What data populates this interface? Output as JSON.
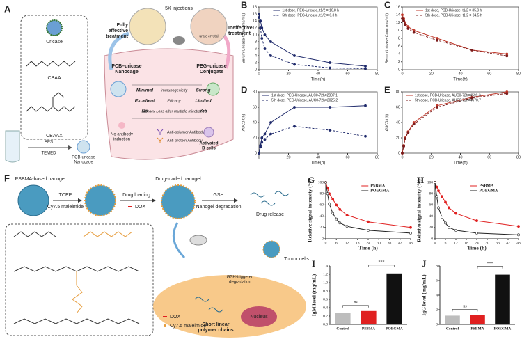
{
  "diagram_a": {
    "label": "A",
    "injections": "5X injections",
    "fully_effective": [
      "Fully",
      "effective",
      "treatment"
    ],
    "ineffective": [
      "Ineffective",
      "treatment"
    ],
    "urate_crystal": "urate crystal",
    "uricase": "Uricase",
    "cbaa": "CBAA",
    "cbaax": "CBAAX",
    "aps": "APS",
    "temed": "TEMED",
    "nanocage_product": [
      "PCB-uricase",
      "Nanocage"
    ],
    "pcb_title": [
      "PCB–uricase",
      "Nanocage"
    ],
    "peg_title": [
      "PEG–uricase",
      "Conjugate"
    ],
    "comparison": [
      [
        "Minimal",
        "Immunogenicity",
        "Strong"
      ],
      [
        "Excellent",
        "Efficacy",
        "Limited"
      ],
      [
        "No",
        "Efficacy Loss after multiple injections?",
        "Yes"
      ]
    ],
    "no_antibody": [
      "No antibody",
      "induction"
    ],
    "anti_polymer": "Anti-polymer Antibody",
    "anti_protein": "Anti-protein Antibody",
    "b_cells": [
      "Activated",
      "B-cells"
    ]
  },
  "diagram_f": {
    "label": "F",
    "nanogel": "PSBMA-based nanogel",
    "tcep": "TCEP",
    "cy_step": "Cy7.5 maleimide",
    "drug_loading": "Drug loading",
    "dox_step": "DOX",
    "loaded": "Drug-loaded nanogel",
    "gsh": "GSH",
    "degradation": "Nanogel degradation",
    "release": "Drug release",
    "tumor": "Tumor cells",
    "gsh_triggered": [
      "GSH-triggered",
      "degradation"
    ],
    "nucleus": "Nucleus",
    "chains": [
      "Short linear",
      "polymer chains"
    ],
    "legend_dox": "DOX",
    "legend_cy": "Cy7.5 maleimide"
  },
  "chart_data": [
    {
      "type": "line",
      "label": "B",
      "ylabel": "Serum Uricase Conc.(ms/mL)",
      "xlabel": "Time(h)",
      "x": [
        0,
        1,
        2,
        4,
        8,
        24,
        48,
        72
      ],
      "xlim": [
        0,
        80
      ],
      "xticks": [
        0,
        20,
        40,
        60,
        80
      ],
      "ylim": [
        0,
        18
      ],
      "yticks": [
        0,
        2,
        4,
        6,
        8,
        10,
        12,
        14,
        16,
        18
      ],
      "legend": "upper right",
      "series": [
        {
          "name": "1st dose, PEG-Uricase, t1/2 = 16.8 h",
          "color": "#1f2a6b",
          "style": "solid",
          "values": [
            16,
            14,
            12,
            10,
            8,
            4,
            2,
            1
          ]
        },
        {
          "name": "5th dose, PEG-Uricase, t1/2 = 6.3 h",
          "color": "#1f2a6b",
          "style": "dashed",
          "values": [
            15,
            12,
            9,
            6,
            4,
            1.5,
            0.5,
            0.3
          ]
        }
      ]
    },
    {
      "type": "line",
      "label": "C",
      "ylabel": "Serum Uricase Conc.(ms/mL)",
      "xlabel": "Time(h)",
      "x": [
        0,
        1,
        2,
        4,
        8,
        24,
        48,
        72
      ],
      "xlim": [
        0,
        80
      ],
      "xticks": [
        0,
        20,
        40,
        60,
        80
      ],
      "ylim": [
        0,
        16
      ],
      "yticks": [
        0,
        2,
        4,
        6,
        8,
        10,
        12,
        14,
        16
      ],
      "legend": "upper right",
      "series": [
        {
          "name": "1st dose, PCB-Uricase, t1/2 = 35.9 h",
          "color": "#c0392b",
          "style": "solid",
          "values": [
            14,
            13,
            12,
            11,
            10,
            8,
            5,
            4
          ]
        },
        {
          "name": "5th dose, PCB-Uricase, t1/2 = 34.5 h",
          "color": "#7b1c1c",
          "style": "dashed",
          "values": [
            13,
            12.5,
            11.5,
            10.5,
            9.5,
            7.5,
            5,
            3.5
          ]
        }
      ]
    },
    {
      "type": "line",
      "label": "D",
      "ylabel": "AUC0-t(h)",
      "xlabel": "Time(h)",
      "x": [
        0,
        1,
        2,
        4,
        8,
        24,
        48,
        72
      ],
      "xlim": [
        0,
        80
      ],
      "xticks": [
        0,
        20,
        40,
        60,
        80
      ],
      "ylim": [
        0,
        80
      ],
      "yticks": [
        0,
        20,
        40,
        60,
        80
      ],
      "legend": "upper left",
      "series": [
        {
          "name": "1st dose, PEG-Uricase, AUC0-72h=2807.1",
          "color": "#1f2a6b",
          "style": "solid",
          "values": [
            0,
            10,
            20,
            25,
            40,
            60,
            60,
            62
          ]
        },
        {
          "name": "5th dose, PEG-Uricase, AUC0-72h=2025.2",
          "color": "#1f2a6b",
          "style": "dashed",
          "values": [
            0,
            8,
            14,
            18,
            25,
            35,
            30,
            22
          ]
        }
      ]
    },
    {
      "type": "line",
      "label": "E",
      "ylabel": "AUC0-t(h)",
      "xlabel": "Time(h)",
      "x": [
        0,
        1,
        2,
        4,
        8,
        24,
        48,
        72
      ],
      "xlim": [
        0,
        80
      ],
      "xticks": [
        0,
        20,
        40,
        60,
        80
      ],
      "ylim": [
        0,
        80
      ],
      "yticks": [
        0,
        20,
        40,
        60,
        80
      ],
      "legend": "upper left",
      "series": [
        {
          "name": "1st dose, PCB-Uricase, AUC0-72h=4599.3",
          "color": "#c0392b",
          "style": "solid",
          "values": [
            0,
            10,
            20,
            28,
            40,
            62,
            73,
            80
          ]
        },
        {
          "name": "5th dose, PCB-Uricase, AUC0-72h=4670.7",
          "color": "#7b1c1c",
          "style": "dashed",
          "values": [
            0,
            9,
            19,
            27,
            38,
            60,
            72,
            78
          ]
        }
      ]
    },
    {
      "type": "line",
      "label": "G",
      "ylabel": "Relative signal intensity (%)",
      "xlabel": "Time (h)",
      "x": [
        0,
        1,
        2,
        4,
        6,
        8,
        12,
        24,
        48
      ],
      "xlim": [
        0,
        48
      ],
      "xticks": [
        0,
        6,
        12,
        18,
        24,
        30,
        36,
        42,
        48
      ],
      "ylim": [
        0,
        100
      ],
      "yticks": [
        0,
        20,
        40,
        60,
        80,
        100
      ],
      "legend": "upper right",
      "series": [
        {
          "name": "PSBMA",
          "color": "#e02020",
          "style": "solid",
          "values": [
            100,
            90,
            80,
            70,
            60,
            52,
            42,
            30,
            20
          ]
        },
        {
          "name": "POEGMA",
          "color": "#222222",
          "style": "solid",
          "values": [
            100,
            80,
            62,
            45,
            35,
            28,
            22,
            15,
            10
          ]
        }
      ]
    },
    {
      "type": "line",
      "label": "H",
      "ylabel": "Relative signal intensity (%)",
      "xlabel": "Time (h)",
      "x": [
        0,
        1,
        2,
        4,
        6,
        8,
        12,
        24,
        48
      ],
      "xlim": [
        0,
        48
      ],
      "xticks": [
        0,
        6,
        12,
        18,
        24,
        30,
        36,
        42,
        48
      ],
      "ylim": [
        0,
        100
      ],
      "yticks": [
        0,
        20,
        40,
        60,
        80,
        100
      ],
      "legend": "upper right",
      "series": [
        {
          "name": "PSBMA",
          "color": "#e02020",
          "style": "solid",
          "values": [
            100,
            92,
            85,
            75,
            65,
            55,
            45,
            32,
            22
          ]
        },
        {
          "name": "POEGMA",
          "color": "#222222",
          "style": "solid",
          "values": [
            100,
            75,
            55,
            38,
            28,
            20,
            15,
            10,
            7
          ]
        }
      ]
    },
    {
      "type": "bar",
      "label": "I",
      "ylabel": "IgM level (mg/mL)",
      "categories": [
        "Control",
        "PSBMA",
        "POEGMA"
      ],
      "values": [
        0.27,
        0.32,
        1.22
      ],
      "colors": [
        "#bdbdbd",
        "#e02020",
        "#111111"
      ],
      "ylim": [
        0,
        1.4
      ],
      "yticks": [
        {
          "value": 0,
          "label": "0.0"
        },
        0.2,
        0.4,
        0.6,
        0.8,
        {
          "value": 1,
          "label": "1.0"
        },
        1.2,
        1.4
      ],
      "annotations": [
        "ns",
        "***"
      ]
    },
    {
      "type": "bar",
      "label": "J",
      "ylabel": "IgG level (mg/mL)",
      "categories": [
        "Control",
        "PSBMA",
        "POEGMA"
      ],
      "values": [
        1.2,
        1.3,
        6.8
      ],
      "colors": [
        "#bdbdbd",
        "#e02020",
        "#111111"
      ],
      "ylim": [
        0,
        8
      ],
      "yticks": [
        0,
        2,
        4,
        6,
        8
      ],
      "annotations": [
        "ns",
        "***"
      ]
    }
  ]
}
